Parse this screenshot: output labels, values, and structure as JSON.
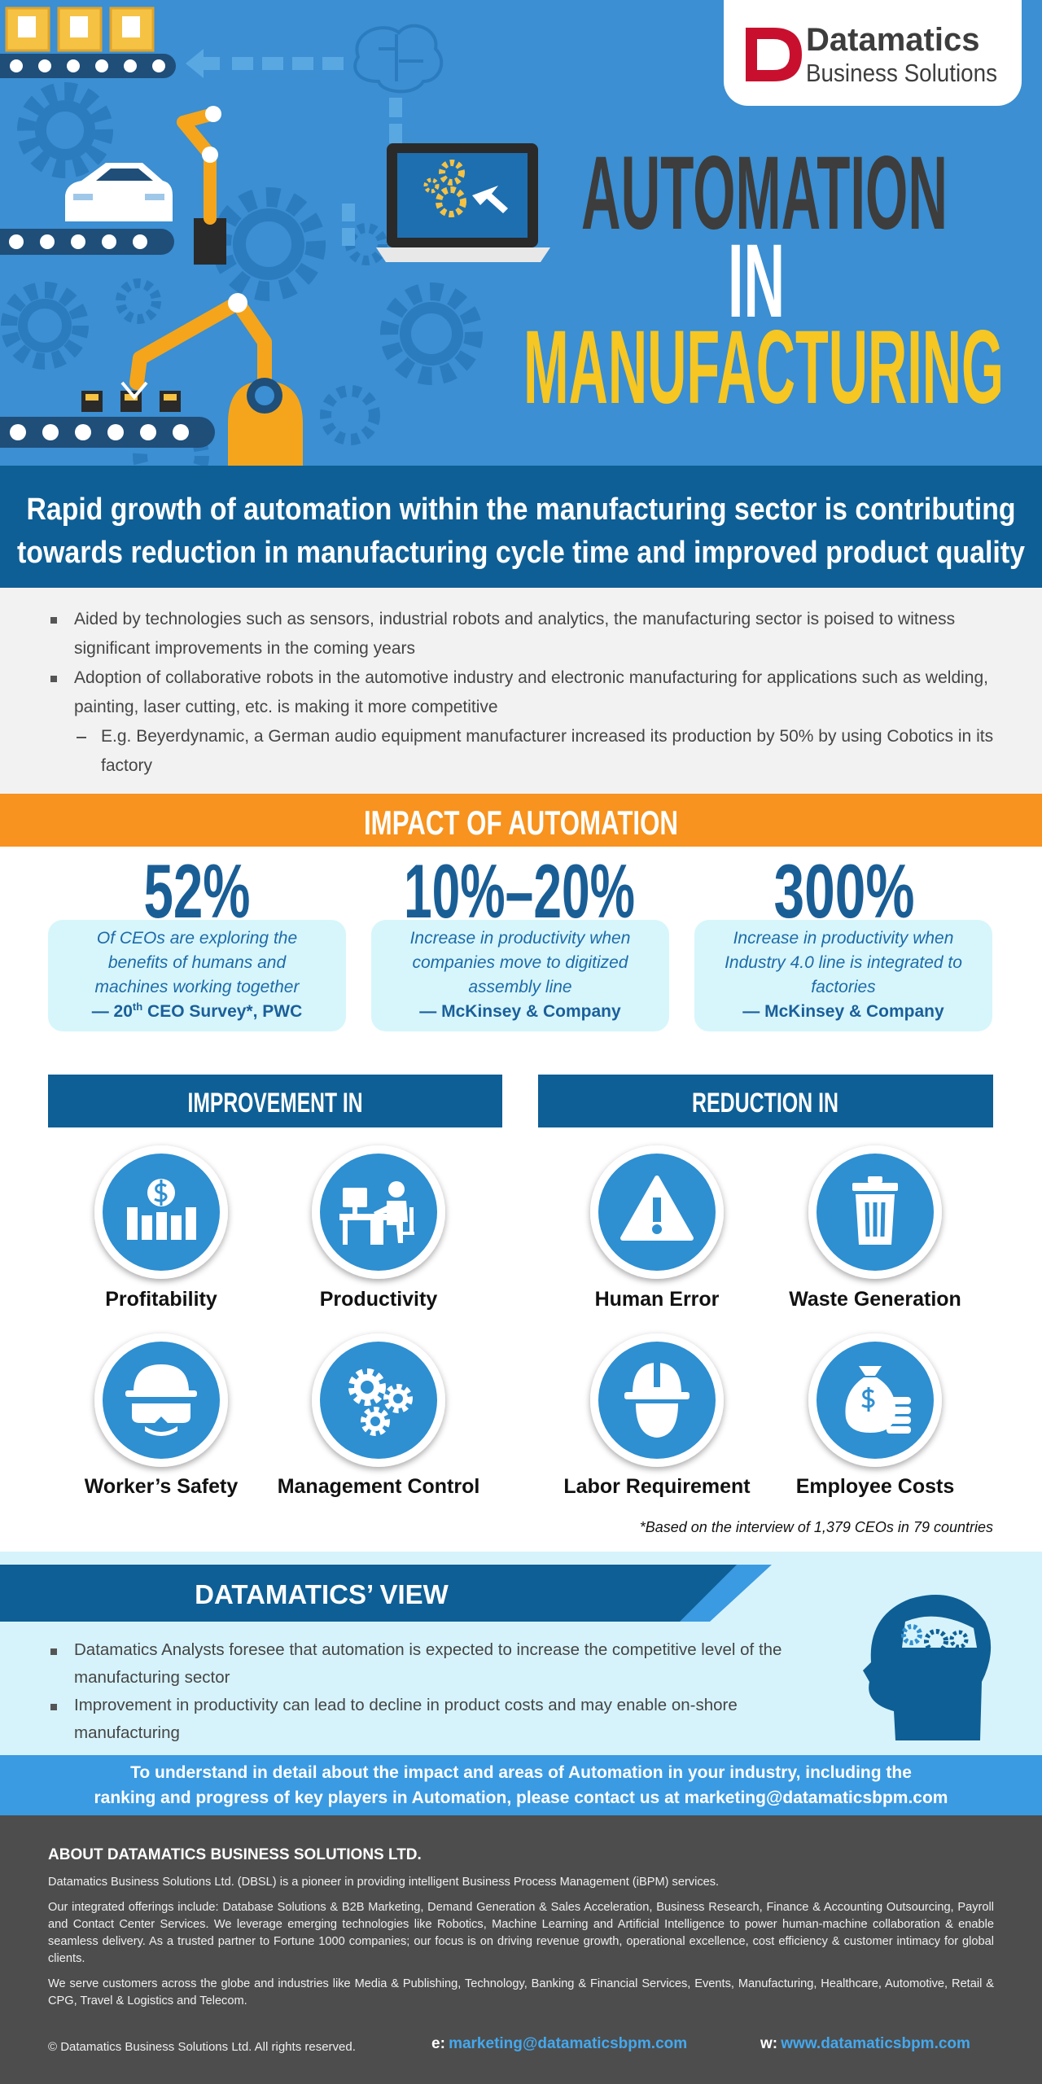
{
  "header": {
    "logo": {
      "name": "Datamatics",
      "tagline": "Business Solutions"
    },
    "title": {
      "line1": "AUTOMATION",
      "line2": "IN",
      "line3": "MANUFACTURING"
    }
  },
  "banner": {
    "lines": [
      "Rapid growth of automation within the manufacturing sector is contributing",
      "towards reduction in manufacturing cycle time and improved product quality"
    ]
  },
  "overview": {
    "points": [
      {
        "text": "Aided by technologies such as sensors, industrial robots and analytics, the manufacturing sector is poised to witness significant improvements in the coming years"
      },
      {
        "text": "Adoption of collaborative robots in the automotive industry and electronic manufacturing for applications such as welding, painting, laser cutting, etc. is making it more competitive",
        "sub_points": [
          "E.g. Beyerdynamic, a German audio equipment manufacturer increased its production by 50% by using Cobotics in its factory"
        ]
      }
    ]
  },
  "impact": {
    "title": "IMPACT OF AUTOMATION",
    "stats": [
      {
        "value": "52%",
        "description": "Of CEOs are exploring the benefits of humans and machines working together",
        "source": {
          "before": "— 20",
          "superscript": "th",
          "after": " CEO Survey*, PWC"
        }
      },
      {
        "value": "10%–20%",
        "description": "Increase in productivity when companies move to digitized assembly line",
        "source": "— McKinsey & Company"
      },
      {
        "value": "300%",
        "description": "Increase in productivity when Industry 4.0 line is integrated to factories",
        "source": "— McKinsey & Company"
      }
    ]
  },
  "improvement": {
    "title": "IMPROVEMENT IN",
    "items": [
      "Profitability",
      "Productivity",
      "Worker’s Safety",
      "Management Control"
    ]
  },
  "reduction": {
    "title": "REDUCTION IN",
    "items": [
      "Human Error",
      "Waste Generation",
      "Labor Requirement",
      "Employee Costs"
    ]
  },
  "footnote": "*Based on the interview of 1,379 CEOs in 79 countries",
  "view": {
    "title": "DATAMATICS’ VIEW",
    "points": [
      "Datamatics Analysts foresee that automation is expected to increase the competitive level of the manufacturing sector",
      "Improvement in productivity can lead to decline in product costs and may enable on-shore manufacturing"
    ]
  },
  "contact_banner": {
    "lines": [
      "To understand in detail about the impact and areas of Automation in your industry, including the",
      "ranking and progress of key players in Automation, please contact us at marketing@datamaticsbpm.com"
    ]
  },
  "footer": {
    "heading": "ABOUT DATAMATICS BUSINESS SOLUTIONS LTD.",
    "paragraphs": [
      "Datamatics Business Solutions Ltd. (DBSL) is a pioneer in providing intelligent Business Process Management (iBPM) services.",
      "Our integrated offerings include: Database Solutions & B2B Marketing, Demand Generation & Sales Acceleration, Business Research, Finance & Accounting Outsourcing, Payroll and Contact Center Services. We leverage emerging technologies like Robotics, Machine Learning and Artificial Intelligence to power human-machine collaboration & enable seamless delivery. As a trusted partner to Fortune 1000 companies; our focus is on driving revenue growth, operational excellence, cost efficiency & customer intimacy for global clients.",
      "We serve customers across the globe and industries like Media & Publishing, Technology, Banking & Financial Services, Events, Manufacturing, Healthcare, Automotive, Retail & CPG, Travel & Logistics and Telecom."
    ],
    "copyright": "© Datamatics Business Solutions Ltd. All rights reserved.",
    "email_label": "e:",
    "email": "marketing@datamaticsbpm.com",
    "web_label": "w:",
    "web": "www.datamaticsbpm.com"
  }
}
